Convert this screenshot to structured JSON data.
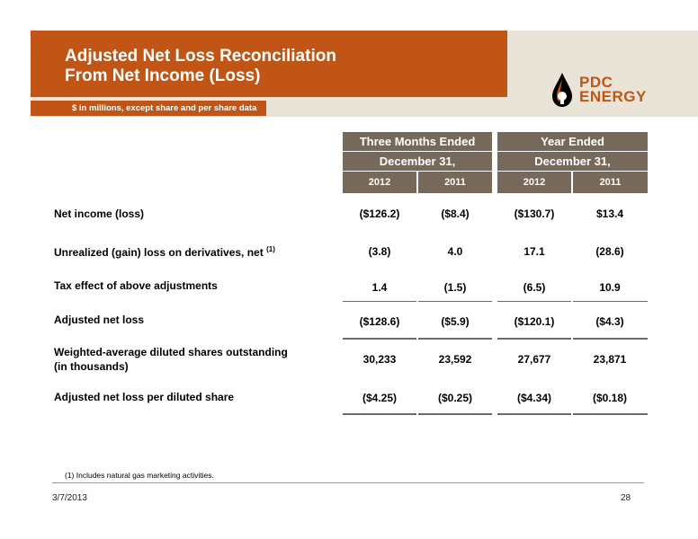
{
  "header": {
    "title_line1": "Adjusted Net Loss Reconciliation",
    "title_line2": "From Net Income (Loss)",
    "subtitle": "$ in millions, except share and per share data",
    "logo_line1": "PDC",
    "logo_line2": "ENERGY",
    "brand_color": "#c05515",
    "accent_color": "#e9e3d8"
  },
  "table": {
    "group_headers": [
      {
        "title": "Three Months Ended",
        "subtitle": "December 31,"
      },
      {
        "title": "Year Ended",
        "subtitle": "December 31,"
      }
    ],
    "years": [
      "2012",
      "2011",
      "2012",
      "2011"
    ],
    "header_color": "#76695a",
    "rows": [
      {
        "label": "Net income (loss)",
        "note": "",
        "values": [
          "($126.2)",
          "($8.4)",
          "($130.7)",
          "$13.4"
        ]
      },
      {
        "label": "Unrealized (gain) loss on derivatives, net",
        "note": "(1)",
        "values": [
          "(3.8)",
          "4.0",
          "17.1",
          "(28.6)"
        ]
      },
      {
        "label": "Tax effect of above adjustments",
        "note": "",
        "values": [
          "1.4",
          "(1.5)",
          "(6.5)",
          "10.9"
        ]
      },
      {
        "label": "Adjusted net loss",
        "note": "",
        "values": [
          "($128.6)",
          "($5.9)",
          "($120.1)",
          "($4.3)"
        ]
      },
      {
        "label": "Weighted-average diluted shares outstanding",
        "label2": "(in thousands)",
        "note": "",
        "values": [
          "30,233",
          "23,592",
          "27,677",
          "23,871"
        ]
      },
      {
        "label": "Adjusted net loss per diluted share",
        "note": "",
        "values": [
          "($4.25)",
          "($0.25)",
          "($4.34)",
          "($0.18)"
        ]
      }
    ]
  },
  "footnote": "(1)   Includes natural gas marketing activities.",
  "footer": {
    "date": "3/7/2013",
    "page": "28"
  }
}
